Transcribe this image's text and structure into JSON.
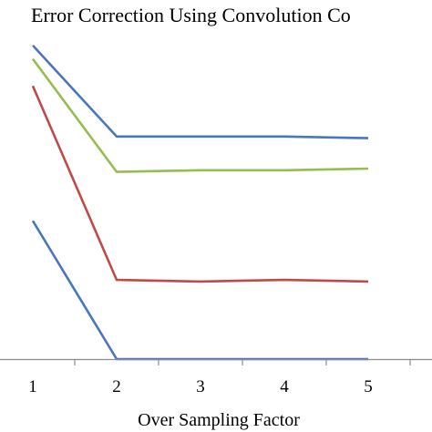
{
  "chart_data": {
    "type": "line",
    "title": "Error Correction Using Convolution Co",
    "xlabel": "Over Sampling Factor",
    "ylabel": "",
    "x": [
      1,
      2,
      3,
      4,
      5
    ],
    "ylim": [
      0,
      100
    ],
    "grid": false,
    "series": [
      {
        "color": "#4A76C0",
        "values": [
          93,
          66,
          66,
          66,
          65.5
        ]
      },
      {
        "color": "#97BD4E",
        "values": [
          89,
          55.5,
          56,
          56,
          56.5
        ]
      },
      {
        "color": "#BE4B48",
        "values": [
          81,
          23.5,
          23,
          23.5,
          23
        ]
      },
      {
        "color": "#4A76C0",
        "values": [
          41,
          0,
          0,
          0,
          0
        ]
      }
    ]
  }
}
